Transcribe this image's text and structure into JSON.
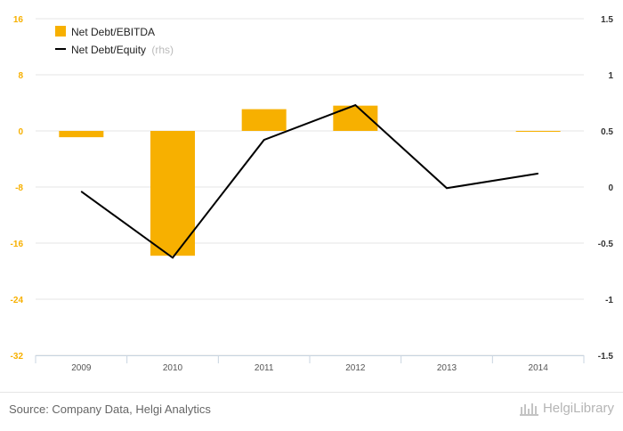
{
  "chart_data": {
    "type": "bar",
    "categories": [
      "2009",
      "2010",
      "2011",
      "2012",
      "2013",
      "2014"
    ],
    "series": [
      {
        "name": "Net Debt/EBITDA",
        "type": "bar",
        "axis": "left",
        "color": "#f7b000",
        "values": [
          -0.9,
          -17.8,
          3.1,
          3.6,
          null,
          -0.1
        ]
      },
      {
        "name": "Net Debt/Equity",
        "suffix": "(rhs)",
        "type": "line",
        "axis": "right",
        "color": "#000000",
        "values": [
          -0.04,
          -0.63,
          0.42,
          0.73,
          -0.01,
          0.12
        ]
      }
    ],
    "y_left": {
      "min": -32,
      "max": 16,
      "ticks": [
        16,
        8,
        0,
        -8,
        -16,
        -24,
        -32
      ],
      "tick_labels": [
        "16",
        "8",
        "0",
        "-8",
        "-16",
        "-24",
        "-32"
      ],
      "color": "#f7b000"
    },
    "y_right": {
      "min": -1.5,
      "max": 1.5,
      "ticks": [
        1.5,
        1,
        0.5,
        0,
        -0.5,
        -1,
        -1.5
      ],
      "tick_labels": [
        "1.5",
        "1",
        "0.5",
        "0",
        "-0.5",
        "-1",
        "-1.5"
      ],
      "color": "#333333"
    },
    "grid": true,
    "legend_position": "top-left"
  },
  "footer": {
    "source": "Source: Company Data, Helgi Analytics",
    "brand": "HelgiLibrary"
  }
}
